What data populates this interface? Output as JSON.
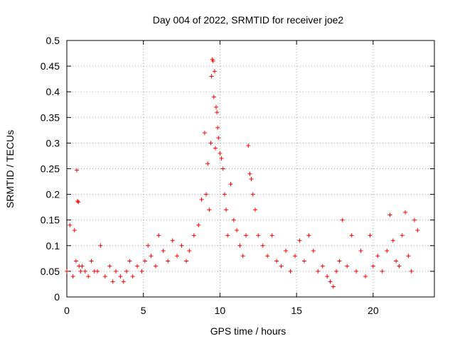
{
  "chart_data": {
    "type": "scatter",
    "title": "Day 004 of 2022, SRMTID for receiver joe2",
    "xlabel": "GPS time / hours",
    "ylabel": "SRMTID / TECUs",
    "xlim": [
      0,
      24
    ],
    "ylim": [
      0,
      0.5
    ],
    "x_ticks": [
      0,
      5,
      10,
      15,
      20
    ],
    "x_tick_labels": [
      "0",
      "5",
      "10",
      "15",
      "20"
    ],
    "y_ticks": [
      0,
      0.05,
      0.1,
      0.15,
      0.2,
      0.25,
      0.3,
      0.35,
      0.4,
      0.45,
      0.5
    ],
    "y_tick_labels": [
      "0",
      "0.05",
      "0.1",
      "0.15",
      "0.2",
      "0.25",
      "0.3",
      "0.35",
      "0.4",
      "0.45",
      "0.5"
    ],
    "grid": true,
    "marker": "+",
    "series_color": "#ff0000",
    "series": [
      {
        "name": "SRMTID",
        "x": [
          0.0,
          0.2,
          0.4,
          0.5,
          0.6,
          0.65,
          0.7,
          0.75,
          0.8,
          0.9,
          1.0,
          1.2,
          1.4,
          1.6,
          1.8,
          2.0,
          2.2,
          2.5,
          2.8,
          3.0,
          3.2,
          3.5,
          3.7,
          3.9,
          4.1,
          4.3,
          4.6,
          4.9,
          5.1,
          5.3,
          5.5,
          5.8,
          6.0,
          6.3,
          6.6,
          6.9,
          7.2,
          7.5,
          7.8,
          8.0,
          8.3,
          8.6,
          8.8,
          9.0,
          9.1,
          9.2,
          9.3,
          9.4,
          9.45,
          9.5,
          9.55,
          9.6,
          9.65,
          9.7,
          9.75,
          9.8,
          9.85,
          9.9,
          10.0,
          10.1,
          10.2,
          10.3,
          10.4,
          10.5,
          10.7,
          10.9,
          11.1,
          11.3,
          11.5,
          11.7,
          11.85,
          11.95,
          12.05,
          12.15,
          12.3,
          12.5,
          12.8,
          13.1,
          13.4,
          13.7,
          14.0,
          14.3,
          14.6,
          14.9,
          15.2,
          15.5,
          15.8,
          16.1,
          16.4,
          16.7,
          17.0,
          17.2,
          17.4,
          17.6,
          17.8,
          18.0,
          18.3,
          18.6,
          18.9,
          19.2,
          19.5,
          19.8,
          20.0,
          20.3,
          20.6,
          20.9,
          21.1,
          21.3,
          21.5,
          21.7,
          21.9,
          22.1,
          22.3,
          22.5,
          22.7,
          22.9
        ],
        "y": [
          0.05,
          0.14,
          0.04,
          0.13,
          0.07,
          0.247,
          0.187,
          0.185,
          0.06,
          0.05,
          0.06,
          0.05,
          0.04,
          0.07,
          0.05,
          0.05,
          0.1,
          0.04,
          0.06,
          0.03,
          0.05,
          0.04,
          0.03,
          0.05,
          0.07,
          0.04,
          0.06,
          0.05,
          0.07,
          0.1,
          0.08,
          0.06,
          0.12,
          0.09,
          0.07,
          0.11,
          0.08,
          0.1,
          0.07,
          0.09,
          0.12,
          0.14,
          0.19,
          0.32,
          0.2,
          0.26,
          0.17,
          0.3,
          0.43,
          0.463,
          0.46,
          0.39,
          0.44,
          0.29,
          0.37,
          0.36,
          0.33,
          0.31,
          0.28,
          0.27,
          0.25,
          0.2,
          0.17,
          0.12,
          0.22,
          0.15,
          0.13,
          0.1,
          0.08,
          0.12,
          0.295,
          0.24,
          0.23,
          0.2,
          0.17,
          0.12,
          0.1,
          0.08,
          0.12,
          0.07,
          0.06,
          0.09,
          0.05,
          0.08,
          0.11,
          0.07,
          0.12,
          0.09,
          0.05,
          0.06,
          0.04,
          0.03,
          0.02,
          0.05,
          0.07,
          0.15,
          0.06,
          0.12,
          0.05,
          0.09,
          0.04,
          0.12,
          0.06,
          0.08,
          0.05,
          0.09,
          0.16,
          0.11,
          0.07,
          0.06,
          0.12,
          0.165,
          0.08,
          0.05,
          0.15,
          0.13
        ]
      }
    ]
  }
}
